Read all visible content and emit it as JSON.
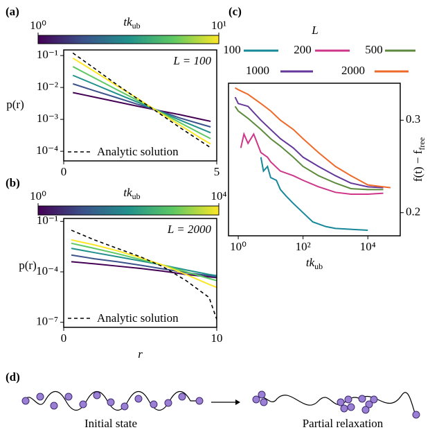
{
  "chart_data": [
    {
      "type": "line",
      "label": "(a)",
      "annotation": "L = 100",
      "xlog": false,
      "ylog": true,
      "xlim": [
        0,
        5
      ],
      "xticks": [
        0,
        5
      ],
      "ylim": [
        5e-05,
        0.15
      ],
      "yticks": [
        {
          "value": 0.1,
          "label": "10⁻¹"
        },
        {
          "value": 0.01,
          "label": "10⁻²"
        },
        {
          "value": 0.001,
          "label": "10⁻³"
        },
        {
          "value": 0.0001,
          "label": "10⁻⁴"
        }
      ],
      "ylabel": "p(r)",
      "colorbar": {
        "label": "tk",
        "label_sub": "ub",
        "lim": [
          1,
          10
        ],
        "log": true,
        "ticks": [
          {
            "value": 1,
            "label": "10⁰"
          },
          {
            "value": 10,
            "label": "10¹"
          }
        ],
        "colors": [
          "#440154",
          "#3b528b",
          "#21918c",
          "#5ec962",
          "#fde725"
        ]
      },
      "x": [
        0.3,
        1,
        1.7,
        2.4,
        3.1,
        3.8,
        4.5,
        4.8
      ],
      "series": [
        {
          "color": "#440154",
          "values": [
            0.0069,
            0.005,
            0.0036,
            0.0026,
            0.0019,
            0.0014,
            0.001,
            0.00087
          ]
        },
        {
          "color": "#3b528b",
          "values": [
            0.013,
            0.0079,
            0.0049,
            0.003,
            0.0019,
            0.0011,
            0.0007,
            0.00058
          ]
        },
        {
          "color": "#21918c",
          "values": [
            0.024,
            0.0126,
            0.0066,
            0.0035,
            0.0018,
            0.00095,
            0.0005,
            0.00038
          ]
        },
        {
          "color": "#5ec962",
          "values": [
            0.045,
            0.02,
            0.0089,
            0.004,
            0.0018,
            0.00079,
            0.00035,
            0.00025
          ]
        },
        {
          "color": "#fde725",
          "values": [
            0.083,
            0.032,
            0.012,
            0.0046,
            0.0017,
            0.00066,
            0.00025,
            0.00017
          ]
        },
        {
          "name": "Analytic solution",
          "color": "#000000",
          "dashed": true,
          "values": [
            0.12,
            0.04,
            0.013,
            0.0045,
            0.0016,
            0.00055,
            0.0002,
            0.00013
          ]
        }
      ]
    },
    {
      "type": "line",
      "label": "(b)",
      "annotation": "L = 2000",
      "xlog": false,
      "ylog": true,
      "xlim": [
        0,
        10
      ],
      "xticks": [
        0,
        10
      ],
      "ylim": [
        5e-08,
        0.15
      ],
      "yticks": [
        {
          "value": 0.1,
          "label": "10⁻¹"
        },
        {
          "value": 0.0001,
          "label": "10⁻⁴"
        },
        {
          "value": 1e-07,
          "label": "10⁻⁷"
        }
      ],
      "xlabel": "r",
      "ylabel": "p(r)",
      "colorbar": {
        "label": "tk",
        "label_sub": "ub",
        "lim": [
          1,
          10000
        ],
        "log": true,
        "ticks": [
          {
            "value": 1,
            "label": "10⁰"
          },
          {
            "value": 10000,
            "label": "10⁴"
          }
        ],
        "colors": [
          "#440154",
          "#3b528b",
          "#21918c",
          "#5ec962",
          "#fde725"
        ]
      },
      "x": [
        0.5,
        2,
        3.5,
        5,
        6.5,
        8,
        9.5,
        10
      ],
      "series": [
        {
          "color": "#440154",
          "values": [
            0.0004,
            0.0003,
            0.00022,
            0.00016,
            0.00011,
            7e-05,
            5e-05,
            4.5e-05
          ]
        },
        {
          "color": "#3b528b",
          "values": [
            0.001,
            0.0006,
            0.0004,
            0.00025,
            0.00015,
            9e-05,
            6e-05,
            5e-05
          ]
        },
        {
          "color": "#21918c",
          "values": [
            0.0025,
            0.0014,
            0.0008,
            0.00045,
            0.00025,
            0.00013,
            7e-05,
            6e-05
          ]
        },
        {
          "color": "#5ec962",
          "values": [
            0.005,
            0.0025,
            0.0012,
            0.00055,
            0.00025,
            0.0001,
            4e-05,
            3e-05
          ]
        },
        {
          "color": "#fde725",
          "values": [
            0.008,
            0.004,
            0.0018,
            0.0007,
            0.00025,
            7e-05,
            1.8e-05,
            1.2e-05
          ]
        },
        {
          "name": "Analytic solution",
          "color": "#000000",
          "dashed": true,
          "values": [
            0.03,
            0.008,
            0.0025,
            0.0008,
            0.0002,
            3e-05,
            3e-06,
            1.5e-07
          ]
        }
      ]
    },
    {
      "type": "line",
      "label": "(c)",
      "xlog": true,
      "ylog": false,
      "xlim": [
        0.5,
        100000
      ],
      "xticks": [
        {
          "value": 1,
          "label": "10⁰"
        },
        {
          "value": 100,
          "label": "10²"
        },
        {
          "value": 10000,
          "label": "10⁴"
        }
      ],
      "ylim": [
        0.175,
        0.34
      ],
      "yticks": [
        0.2,
        0.3
      ],
      "xlabel": "tk",
      "xlabel_sub": "ub",
      "ylabel": "f(t) − f",
      "ylabel_sub": "free",
      "legend_title": "L",
      "series": [
        {
          "name": "100",
          "color": "#17879a",
          "x": [
            5,
            6,
            8,
            10,
            15,
            20,
            30,
            50,
            100,
            200,
            500,
            1000,
            3000,
            10000
          ],
          "values": [
            0.26,
            0.245,
            0.25,
            0.238,
            0.235,
            0.225,
            0.218,
            0.21,
            0.2,
            0.19,
            0.185,
            0.183,
            0.182,
            0.181
          ]
        },
        {
          "name": "200",
          "color": "#cf3588",
          "x": [
            1.2,
            1.5,
            2,
            3,
            5,
            8,
            10,
            20,
            50,
            100,
            300,
            1000,
            3000,
            10000,
            30000
          ],
          "values": [
            0.27,
            0.285,
            0.275,
            0.285,
            0.265,
            0.26,
            0.255,
            0.245,
            0.24,
            0.235,
            0.228,
            0.222,
            0.22,
            0.22,
            0.221
          ]
        },
        {
          "name": "500",
          "color": "#5c8a3c",
          "x": [
            0.8,
            1,
            2,
            5,
            10,
            20,
            50,
            100,
            300,
            1000,
            3000,
            10000,
            30000
          ],
          "values": [
            0.315,
            0.31,
            0.302,
            0.29,
            0.28,
            0.272,
            0.26,
            0.25,
            0.24,
            0.232,
            0.226,
            0.225,
            0.225
          ]
        },
        {
          "name": "1000",
          "color": "#65379a",
          "x": [
            0.8,
            1,
            2,
            5,
            10,
            20,
            50,
            100,
            300,
            1000,
            3000,
            10000,
            30000
          ],
          "values": [
            0.325,
            0.318,
            0.315,
            0.3,
            0.29,
            0.28,
            0.27,
            0.26,
            0.25,
            0.24,
            0.232,
            0.228,
            0.227
          ]
        },
        {
          "name": "2000",
          "color": "#ef6a2a",
          "x": [
            0.8,
            1,
            2,
            5,
            10,
            20,
            50,
            100,
            300,
            1000,
            3000,
            10000,
            30000,
            50000
          ],
          "values": [
            0.335,
            0.333,
            0.328,
            0.318,
            0.31,
            0.3,
            0.29,
            0.28,
            0.265,
            0.25,
            0.24,
            0.23,
            0.228,
            0.227
          ]
        }
      ]
    }
  ],
  "diagram": {
    "label": "(d)",
    "left": "Initial state",
    "right": "Partial relaxation"
  }
}
